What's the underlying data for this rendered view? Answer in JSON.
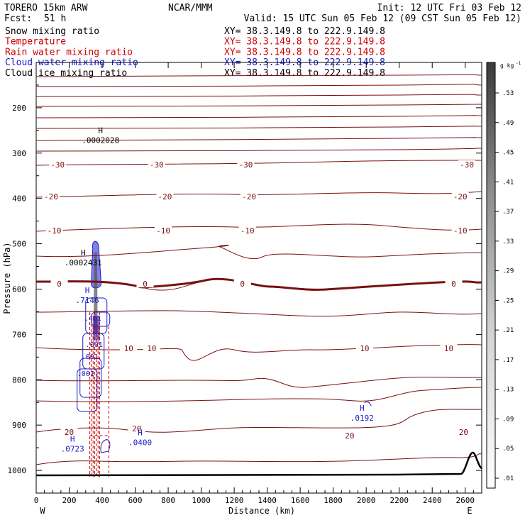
{
  "header": {
    "model": "TORERO  15km ARW",
    "center": "NCAR/MMM",
    "init": "Init: 12 UTC Fri 03 Feb 12",
    "fcst_label": "Fcst:",
    "fcst_value": "51 h",
    "valid": "Valid: 15 UTC Sun 05 Feb 12 (09 CST Sun 05 Feb 12)"
  },
  "legend": [
    {
      "label": "Snow mixing ratio",
      "color": "#000000"
    },
    {
      "label": "Temperature",
      "color": "#cc0000"
    },
    {
      "label": "Rain water mixing ratio",
      "color": "#cc0000"
    },
    {
      "label": "Cloud water mixing ratio",
      "color": "#1a1acc"
    },
    {
      "label": "Cloud ice mixing ratio",
      "color": "#000000"
    }
  ],
  "xy_text": "XY=  38.3.149.8 to 222.9.149.8",
  "colorbar": {
    "unit": "g kg",
    "unit_exp": "-1",
    "labels": [
      ".53",
      ".49",
      ".45",
      ".41",
      ".37",
      ".33",
      ".29",
      ".25",
      ".21",
      ".17",
      ".13",
      ".09",
      ".05",
      ".01"
    ]
  },
  "chart_data": {
    "type": "cross-section",
    "xlabel": "Distance (km)",
    "ylabel": "Pressure (hPa)",
    "xlim": [
      0,
      2700
    ],
    "ylim": [
      1050,
      100
    ],
    "x_ticks": [
      0,
      200,
      400,
      600,
      800,
      1000,
      1200,
      1400,
      1600,
      1800,
      2000,
      2200,
      2400,
      2600
    ],
    "y_ticks": [
      200,
      300,
      400,
      500,
      600,
      700,
      800,
      900,
      1000
    ],
    "endpoints": {
      "left": "W",
      "right": "E"
    },
    "temperature_contours": [
      {
        "value": -30,
        "label": "-30",
        "labels_at": [
          130,
          730,
          1270,
          2610
        ]
      },
      {
        "value": -20,
        "label": "-20",
        "labels_at": [
          90,
          780,
          1290,
          2570
        ]
      },
      {
        "value": -10,
        "label": "-10",
        "labels_at": [
          110,
          770,
          1280,
          2570
        ]
      },
      {
        "value": 0,
        "label": "0",
        "labels_at": [
          140,
          660,
          1250,
          2530
        ]
      },
      {
        "value": 10,
        "label": "10",
        "labels_at": [
          560,
          700,
          1990,
          2500
        ]
      },
      {
        "value": 20,
        "label": "20",
        "labels_at": [
          200,
          610,
          1900,
          2590
        ]
      }
    ],
    "extrema": [
      {
        "kind": "H",
        "value": ".0002028",
        "x_km": 390,
        "p_hpa": 265,
        "field": "snow"
      },
      {
        "kind": "H",
        "value": ".0002431",
        "x_km": 285,
        "p_hpa": 535,
        "field": "snow"
      },
      {
        "kind": "H",
        "value": ".7146",
        "x_km": 310,
        "p_hpa": 618,
        "field": "cloud water"
      },
      {
        "kind": "H",
        "value": ".0723",
        "x_km": 220,
        "p_hpa": 946,
        "field": "cloud water"
      },
      {
        "kind": "H",
        "value": ".0400",
        "x_km": 630,
        "p_hpa": 932,
        "field": "cloud water"
      },
      {
        "kind": "H",
        "value": ".0192",
        "x_km": 1975,
        "p_hpa": 878,
        "field": "cloud water"
      }
    ],
    "cloud_labels": [
      ".401",
      ".001",
      ".001",
      ".001"
    ]
  }
}
